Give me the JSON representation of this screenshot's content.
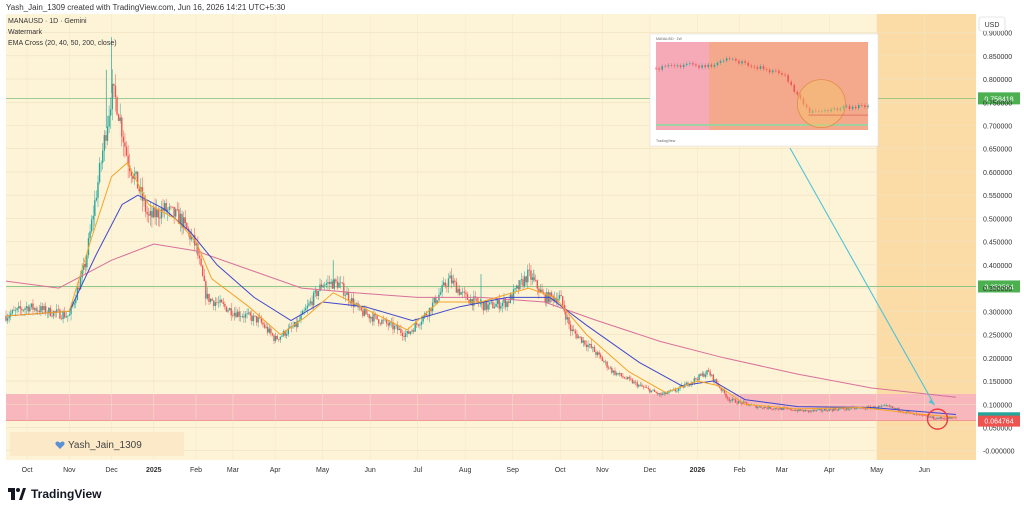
{
  "header": {
    "creator": "Yash_Jain_1309 created with TradingView.com, Jun 16, 2026 14:21 UTC+5:30"
  },
  "legend": {
    "symbol": "MANAUSD · 1D · Gemini",
    "watermark": "Watermark",
    "indicator": "EMA Cross (20, 40, 50, 200, close)"
  },
  "currency": "USD",
  "watermark_tag": "Yash_Jain_1309",
  "brand": "TradingView",
  "colors": {
    "plot_bg": "#fdf3d7",
    "shade_bg": "#fbdca6",
    "zone": "#f7b7bd",
    "ema_fast": "#f4a425",
    "ema_mid": "#3f48cc",
    "ema_slow": "#d8709a",
    "level_line": "#7dc27d",
    "level_label_bg": "#4caf50",
    "current_label_bg": "#26a69a",
    "zone_label_bg": "#ef5350",
    "arrow": "#4fc3d6",
    "circle": "#ef3b3b",
    "up": "#26a69a",
    "down": "#ef5350"
  },
  "chart_data": {
    "type": "candlestick",
    "y_axis": {
      "range": [
        -0.02,
        0.94
      ],
      "ticks": [
        "0.900000",
        "0.850000",
        "0.800000",
        "0.750000",
        "0.700000",
        "0.650000",
        "0.600000",
        "0.550000",
        "0.500000",
        "0.450000",
        "0.400000",
        "0.350000",
        "0.300000",
        "0.250000",
        "0.200000",
        "0.150000",
        "0.100000",
        "0.050000",
        "-0.000000"
      ],
      "tick_values": [
        0.9,
        0.85,
        0.8,
        0.75,
        0.7,
        0.65,
        0.6,
        0.55,
        0.5,
        0.45,
        0.4,
        0.35,
        0.3,
        0.25,
        0.2,
        0.15,
        0.1,
        0.05,
        0.0
      ]
    },
    "x_axis": {
      "labels": [
        "Oct",
        "Nov",
        "Dec",
        "2025",
        "Feb",
        "Mar",
        "Apr",
        "May",
        "Jun",
        "Jul",
        "Aug",
        "Sep",
        "Oct",
        "Nov",
        "Dec",
        "2026",
        "Feb",
        "Mar",
        "Apr",
        "May",
        "Jun"
      ],
      "label_t": [
        0.04,
        0.12,
        0.2,
        0.28,
        0.36,
        0.43,
        0.51,
        0.6,
        0.69,
        0.78,
        0.87,
        0.96,
        1.05,
        1.13,
        1.22,
        1.31,
        1.39,
        1.47,
        1.56,
        1.65,
        1.74
      ]
    },
    "price_path": [
      {
        "t": 0.0,
        "v": 0.29
      },
      {
        "t": 0.04,
        "v": 0.31
      },
      {
        "t": 0.08,
        "v": 0.3
      },
      {
        "t": 0.12,
        "v": 0.29
      },
      {
        "t": 0.15,
        "v": 0.4
      },
      {
        "t": 0.18,
        "v": 0.62
      },
      {
        "t": 0.2,
        "v": 0.77
      },
      {
        "t": 0.21,
        "v": 0.75
      },
      {
        "t": 0.23,
        "v": 0.63
      },
      {
        "t": 0.25,
        "v": 0.57
      },
      {
        "t": 0.27,
        "v": 0.5
      },
      {
        "t": 0.3,
        "v": 0.52
      },
      {
        "t": 0.33,
        "v": 0.5
      },
      {
        "t": 0.36,
        "v": 0.44
      },
      {
        "t": 0.38,
        "v": 0.33
      },
      {
        "t": 0.43,
        "v": 0.3
      },
      {
        "t": 0.48,
        "v": 0.28
      },
      {
        "t": 0.51,
        "v": 0.24
      },
      {
        "t": 0.55,
        "v": 0.27
      },
      {
        "t": 0.6,
        "v": 0.36
      },
      {
        "t": 0.63,
        "v": 0.36
      },
      {
        "t": 0.67,
        "v": 0.3
      },
      {
        "t": 0.71,
        "v": 0.28
      },
      {
        "t": 0.76,
        "v": 0.25
      },
      {
        "t": 0.8,
        "v": 0.3
      },
      {
        "t": 0.84,
        "v": 0.37
      },
      {
        "t": 0.87,
        "v": 0.33
      },
      {
        "t": 0.91,
        "v": 0.31
      },
      {
        "t": 0.95,
        "v": 0.32
      },
      {
        "t": 0.99,
        "v": 0.38
      },
      {
        "t": 1.02,
        "v": 0.33
      },
      {
        "t": 1.05,
        "v": 0.33
      },
      {
        "t": 1.07,
        "v": 0.26
      },
      {
        "t": 1.11,
        "v": 0.22
      },
      {
        "t": 1.15,
        "v": 0.17
      },
      {
        "t": 1.2,
        "v": 0.14
      },
      {
        "t": 1.24,
        "v": 0.12
      },
      {
        "t": 1.27,
        "v": 0.13
      },
      {
        "t": 1.3,
        "v": 0.15
      },
      {
        "t": 1.33,
        "v": 0.17
      },
      {
        "t": 1.37,
        "v": 0.11
      },
      {
        "t": 1.42,
        "v": 0.095
      },
      {
        "t": 1.47,
        "v": 0.09
      },
      {
        "t": 1.52,
        "v": 0.085
      },
      {
        "t": 1.58,
        "v": 0.09
      },
      {
        "t": 1.63,
        "v": 0.092
      },
      {
        "t": 1.67,
        "v": 0.095
      },
      {
        "t": 1.72,
        "v": 0.078
      },
      {
        "t": 1.76,
        "v": 0.07
      },
      {
        "t": 1.8,
        "v": 0.07
      }
    ],
    "spikes": [
      {
        "t": 0.2,
        "v": 0.89
      },
      {
        "t": 0.19,
        "v": 0.82
      },
      {
        "t": 0.62,
        "v": 0.41
      },
      {
        "t": 0.9,
        "v": 0.38
      },
      {
        "t": 1.0,
        "v": 0.39
      }
    ],
    "ema_fast": [
      {
        "t": 0.0,
        "v": 0.29
      },
      {
        "t": 0.12,
        "v": 0.3
      },
      {
        "t": 0.16,
        "v": 0.45
      },
      {
        "t": 0.2,
        "v": 0.59
      },
      {
        "t": 0.23,
        "v": 0.62
      },
      {
        "t": 0.27,
        "v": 0.53
      },
      {
        "t": 0.32,
        "v": 0.5
      },
      {
        "t": 0.36,
        "v": 0.45
      },
      {
        "t": 0.39,
        "v": 0.37
      },
      {
        "t": 0.46,
        "v": 0.31
      },
      {
        "t": 0.52,
        "v": 0.25
      },
      {
        "t": 0.57,
        "v": 0.29
      },
      {
        "t": 0.62,
        "v": 0.34
      },
      {
        "t": 0.69,
        "v": 0.3
      },
      {
        "t": 0.76,
        "v": 0.26
      },
      {
        "t": 0.82,
        "v": 0.32
      },
      {
        "t": 0.9,
        "v": 0.32
      },
      {
        "t": 0.99,
        "v": 0.35
      },
      {
        "t": 1.04,
        "v": 0.33
      },
      {
        "t": 1.1,
        "v": 0.25
      },
      {
        "t": 1.18,
        "v": 0.17
      },
      {
        "t": 1.25,
        "v": 0.125
      },
      {
        "t": 1.31,
        "v": 0.15
      },
      {
        "t": 1.35,
        "v": 0.14
      },
      {
        "t": 1.4,
        "v": 0.1
      },
      {
        "t": 1.5,
        "v": 0.09
      },
      {
        "t": 1.62,
        "v": 0.093
      },
      {
        "t": 1.72,
        "v": 0.08
      },
      {
        "t": 1.8,
        "v": 0.072
      }
    ],
    "ema_mid": [
      {
        "t": 0.0,
        "v": 0.29
      },
      {
        "t": 0.12,
        "v": 0.3
      },
      {
        "t": 0.17,
        "v": 0.42
      },
      {
        "t": 0.22,
        "v": 0.53
      },
      {
        "t": 0.25,
        "v": 0.55
      },
      {
        "t": 0.3,
        "v": 0.52
      },
      {
        "t": 0.35,
        "v": 0.47
      },
      {
        "t": 0.4,
        "v": 0.4
      },
      {
        "t": 0.47,
        "v": 0.33
      },
      {
        "t": 0.54,
        "v": 0.28
      },
      {
        "t": 0.6,
        "v": 0.32
      },
      {
        "t": 0.68,
        "v": 0.31
      },
      {
        "t": 0.77,
        "v": 0.28
      },
      {
        "t": 0.86,
        "v": 0.31
      },
      {
        "t": 0.95,
        "v": 0.33
      },
      {
        "t": 1.03,
        "v": 0.33
      },
      {
        "t": 1.1,
        "v": 0.27
      },
      {
        "t": 1.2,
        "v": 0.19
      },
      {
        "t": 1.28,
        "v": 0.14
      },
      {
        "t": 1.34,
        "v": 0.15
      },
      {
        "t": 1.4,
        "v": 0.11
      },
      {
        "t": 1.5,
        "v": 0.095
      },
      {
        "t": 1.64,
        "v": 0.093
      },
      {
        "t": 1.8,
        "v": 0.078
      }
    ],
    "ema_slow": [
      {
        "t": 0.0,
        "v": 0.365
      },
      {
        "t": 0.1,
        "v": 0.35
      },
      {
        "t": 0.2,
        "v": 0.41
      },
      {
        "t": 0.28,
        "v": 0.445
      },
      {
        "t": 0.36,
        "v": 0.43
      },
      {
        "t": 0.46,
        "v": 0.39
      },
      {
        "t": 0.56,
        "v": 0.35
      },
      {
        "t": 0.66,
        "v": 0.34
      },
      {
        "t": 0.78,
        "v": 0.33
      },
      {
        "t": 0.9,
        "v": 0.33
      },
      {
        "t": 1.02,
        "v": 0.32
      },
      {
        "t": 1.12,
        "v": 0.28
      },
      {
        "t": 1.24,
        "v": 0.235
      },
      {
        "t": 1.36,
        "v": 0.2
      },
      {
        "t": 1.5,
        "v": 0.165
      },
      {
        "t": 1.64,
        "v": 0.135
      },
      {
        "t": 1.8,
        "v": 0.115
      }
    ],
    "horizontal_levels": [
      {
        "value": 0.758418,
        "label": "0.758418"
      },
      {
        "value": 0.353564,
        "label": "0.353564"
      }
    ],
    "current_price": {
      "value": 0.06981,
      "label": "0.069810"
    },
    "zone": {
      "top": 0.122,
      "bottom": 0.064764,
      "label": "0.064764"
    },
    "shaded_t": [
      1.65,
      1.8
    ],
    "circle_t": 1.765,
    "circle_v": 0.068,
    "inset": {
      "header_text": "MANAUSD · 1W",
      "footer_text": "TradingView",
      "price_path": [
        {
          "f": 0.0,
          "v": 0.7
        },
        {
          "f": 0.06,
          "v": 0.74
        },
        {
          "f": 0.1,
          "v": 0.72
        },
        {
          "f": 0.15,
          "v": 0.78
        },
        {
          "f": 0.2,
          "v": 0.72
        },
        {
          "f": 0.26,
          "v": 0.73
        },
        {
          "f": 0.32,
          "v": 0.8
        },
        {
          "f": 0.38,
          "v": 0.79
        },
        {
          "f": 0.44,
          "v": 0.73
        },
        {
          "f": 0.5,
          "v": 0.7
        },
        {
          "f": 0.55,
          "v": 0.66
        },
        {
          "f": 0.6,
          "v": 0.64
        },
        {
          "f": 0.66,
          "v": 0.4
        },
        {
          "f": 0.72,
          "v": 0.22
        },
        {
          "f": 0.78,
          "v": 0.2
        },
        {
          "f": 0.84,
          "v": 0.24
        },
        {
          "f": 0.88,
          "v": 0.26
        }
      ]
    }
  }
}
